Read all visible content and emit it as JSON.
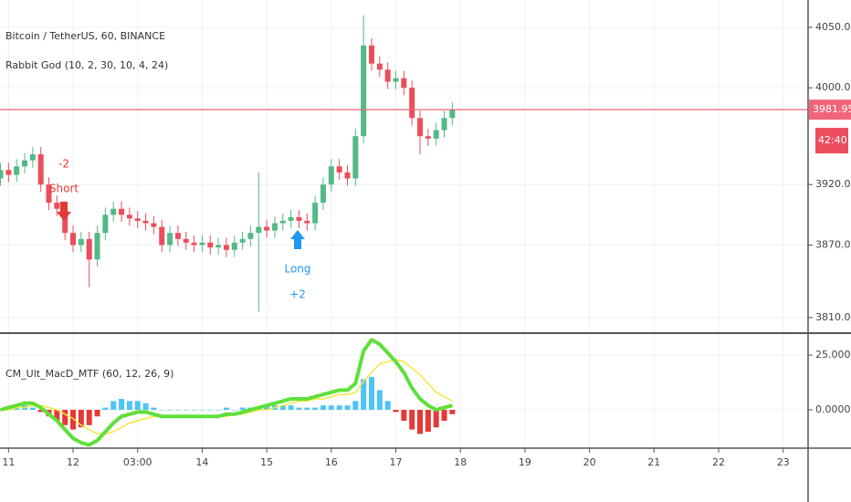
{
  "chart_data": [
    {
      "type": "candlestick",
      "title": "Bitcoin / TetherUS, 60, BINANCE",
      "subtitle": "Rabbit God (10, 2, 30, 10, 4, 24)",
      "x": [
        10.875,
        11,
        11.125,
        11.25,
        11.375,
        11.5,
        11.625,
        11.75,
        11.875,
        12,
        12.125,
        12.25,
        12.375,
        12.5,
        12.625,
        12.75,
        12.875,
        13,
        13.125,
        13.25,
        13.375,
        13.5,
        13.625,
        13.75,
        13.875,
        14,
        14.125,
        14.25,
        14.375,
        14.5,
        14.625,
        14.75,
        14.875,
        15,
        15.125,
        15.25,
        15.375,
        15.5,
        15.625,
        15.75,
        15.875,
        16,
        16.125,
        16.25,
        16.375,
        16.5,
        16.625,
        16.75,
        16.875,
        17,
        17.125,
        17.25,
        17.375,
        17.5,
        17.625,
        17.75,
        17.875
      ],
      "open": [
        3925,
        3932,
        3928,
        3935,
        3940,
        3945,
        3920,
        3905,
        3900,
        3880,
        3870,
        3875,
        3858,
        3880,
        3895,
        3900,
        3895,
        3892,
        3890,
        3888,
        3885,
        3870,
        3880,
        3875,
        3872,
        3870,
        3872,
        3868,
        3870,
        3866,
        3872,
        3875,
        3880,
        3885,
        3882,
        3888,
        3890,
        3893,
        3890,
        3888,
        3905,
        3920,
        3935,
        3930,
        3925,
        3960,
        4035,
        4020,
        4015,
        4005,
        4008,
        4000,
        3975,
        3960,
        3958,
        3965,
        3975
      ],
      "high": [
        3938,
        3938,
        3941,
        3946,
        3951,
        3951,
        3926,
        3911,
        3906,
        3886,
        3881,
        3881,
        3886,
        3901,
        3906,
        3906,
        3901,
        3898,
        3896,
        3894,
        3891,
        3886,
        3886,
        3881,
        3878,
        3878,
        3878,
        3876,
        3876,
        3878,
        3881,
        3886,
        3930,
        3891,
        3894,
        3896,
        3899,
        3899,
        3896,
        3911,
        3926,
        3941,
        3941,
        3936,
        3966,
        4060,
        4041,
        4026,
        4021,
        4014,
        4014,
        4006,
        3981,
        3966,
        3971,
        3981,
        3988
      ],
      "low": [
        3919,
        3922,
        3922,
        3929,
        3934,
        3914,
        3899,
        3894,
        3874,
        3864,
        3864,
        3835,
        3852,
        3874,
        3889,
        3889,
        3886,
        3884,
        3882,
        3879,
        3864,
        3864,
        3869,
        3866,
        3864,
        3864,
        3862,
        3862,
        3860,
        3860,
        3866,
        3869,
        3815,
        3876,
        3876,
        3882,
        3884,
        3884,
        3882,
        3882,
        3899,
        3914,
        3924,
        3919,
        3919,
        3954,
        4014,
        4009,
        3999,
        3999,
        3994,
        3969,
        3945,
        3952,
        3952,
        3959,
        3969
      ],
      "close": [
        3932,
        3928,
        3935,
        3940,
        3945,
        3920,
        3905,
        3900,
        3880,
        3870,
        3875,
        3858,
        3880,
        3895,
        3900,
        3895,
        3892,
        3890,
        3888,
        3885,
        3870,
        3880,
        3875,
        3872,
        3870,
        3872,
        3868,
        3870,
        3866,
        3872,
        3875,
        3880,
        3885,
        3882,
        3888,
        3890,
        3893,
        3890,
        3888,
        3905,
        3920,
        3935,
        3930,
        3925,
        3960,
        4035,
        4020,
        4015,
        4005,
        4008,
        4000,
        3975,
        3960,
        3958,
        3965,
        3975,
        3982
      ],
      "up_color": "#53b987",
      "down_color": "#eb4d5c",
      "xlim": [
        10.868,
        23.358
      ],
      "xticks": [
        11,
        12,
        {
          "value": 13,
          "label": "03:00"
        },
        14,
        15,
        16,
        17,
        18,
        19,
        20,
        21,
        22,
        23
      ],
      "ylim": [
        3799.4,
        4072.6
      ],
      "yticks": [
        {
          "value": 3810,
          "label": "3810.00"
        },
        {
          "value": 3870,
          "label": "3870.00"
        },
        {
          "value": 3920,
          "label": "3920.00"
        },
        {
          "value": 4000,
          "label": "4000.00"
        },
        {
          "value": 4050,
          "label": "4050.00"
        }
      ],
      "last_price": 3981.95,
      "last_price_color": "#f0657a",
      "countdown": "42:40",
      "short_signal": [
        "-2",
        "Short"
      ],
      "long_signal": [
        "Long",
        "+2"
      ],
      "grid": true
    },
    {
      "type": "macd",
      "title": "CM_Ult_MacD_MTF (60, 12, 26, 9)",
      "macd": [
        0,
        1,
        2,
        3,
        3,
        1,
        -2,
        -5,
        -9,
        -13,
        -15,
        -16,
        -14,
        -10,
        -6,
        -3,
        -2,
        -1,
        -1,
        -2,
        -3,
        -3,
        -3,
        -3,
        -3,
        -3,
        -3,
        -3,
        -2,
        -2,
        -1,
        0,
        1,
        2,
        3,
        4,
        5,
        5,
        5,
        6,
        7,
        8,
        9,
        9,
        12,
        27,
        32,
        30,
        26,
        22,
        17,
        10,
        5,
        2,
        0,
        1,
        2
      ],
      "signal": [
        0,
        0,
        1,
        1,
        2,
        2,
        1,
        0,
        -2,
        -4,
        -7,
        -9,
        -11,
        -11,
        -10,
        -8,
        -6,
        -5,
        -4,
        -3,
        -3,
        -3,
        -3,
        -3,
        -3,
        -3,
        -3,
        -3,
        -3,
        -2,
        -2,
        -1,
        0,
        0,
        1,
        2,
        3,
        4,
        4,
        5,
        5,
        6,
        7,
        7,
        8,
        13,
        17,
        21,
        22,
        23,
        22,
        19,
        16,
        12,
        8,
        6,
        4
      ],
      "histogram": [
        0,
        1,
        1,
        2,
        1,
        -1,
        -3,
        -5,
        -7,
        -9,
        -8,
        -7,
        -3,
        1,
        4,
        5,
        4,
        4,
        3,
        1,
        0,
        0,
        0,
        0,
        0,
        0,
        0,
        0,
        1,
        0,
        1,
        1,
        1,
        2,
        2,
        2,
        2,
        1,
        1,
        1,
        2,
        2,
        2,
        2,
        4,
        14,
        15,
        9,
        4,
        -1,
        -5,
        -9,
        -11,
        -10,
        -8,
        -5,
        -2
      ],
      "macd_color": "#5ee03a",
      "signal_color": "#f5e63c",
      "hist_up_color": "#4fc3f7",
      "hist_down_color": "#e53935",
      "ylim": [
        -17.1,
        34.2
      ],
      "yticks": [
        {
          "value": 0,
          "label": "0.0000"
        },
        {
          "value": 25,
          "label": "25.0000"
        }
      ],
      "grid": true
    }
  ]
}
